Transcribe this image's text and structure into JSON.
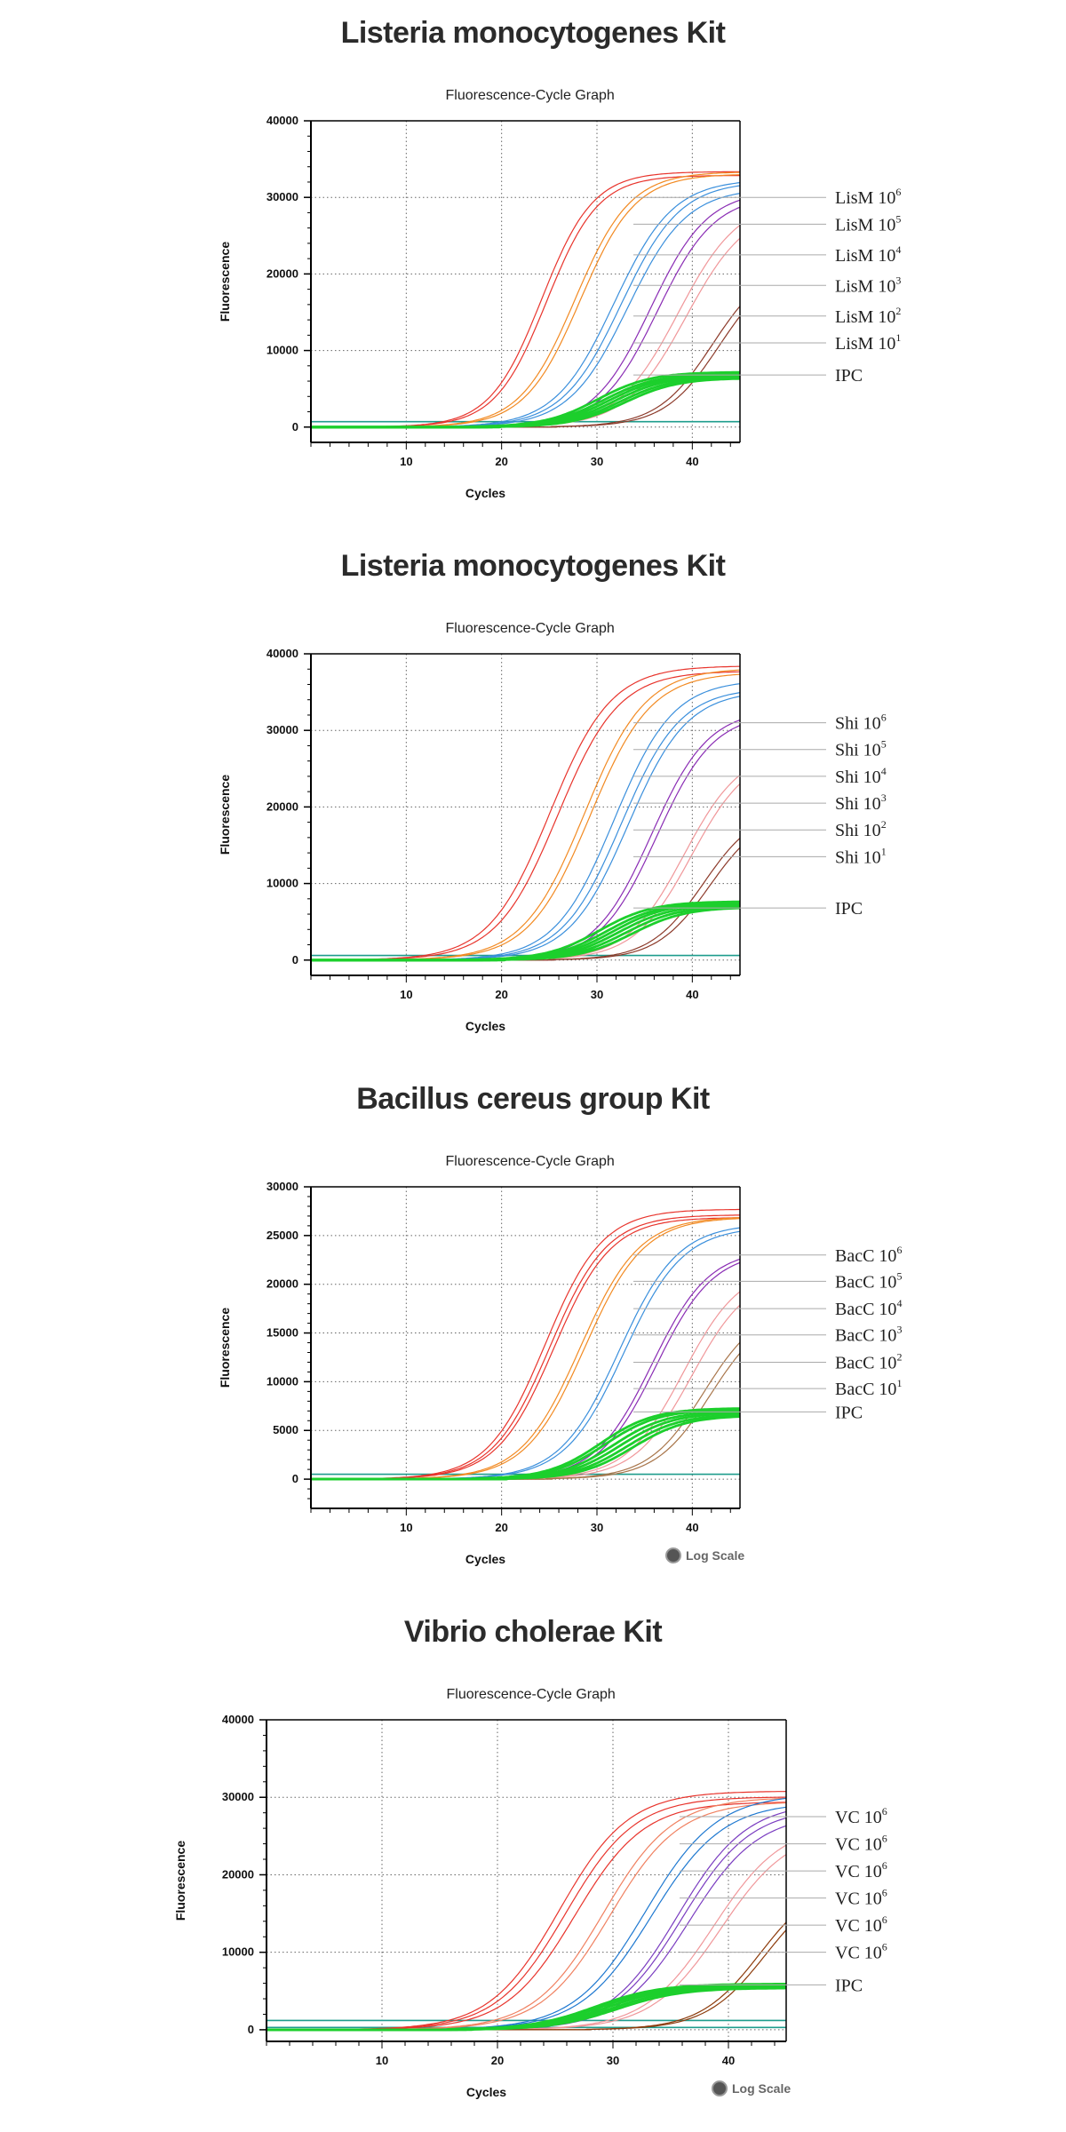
{
  "chart_data": [
    {
      "type": "line",
      "kit_title": "Listeria monocytogenes Kit",
      "title": "Fluorescence-Cycle Graph",
      "xlabel": "Cycles",
      "ylabel": "Fluorescence",
      "xlim": [
        0,
        45
      ],
      "ylim": [
        -2000,
        40000
      ],
      "xticks": [
        10,
        20,
        30,
        40
      ],
      "yticks": [
        0,
        10000,
        20000,
        30000,
        40000
      ],
      "yticklabels": [
        "0",
        "10000",
        "20000",
        "30000",
        "40000"
      ],
      "grid": true,
      "baselines": [
        {
          "y": 700,
          "color": "#1e9c8c"
        }
      ],
      "series": [
        {
          "name": "LisM 10",
          "sup": "6",
          "color": "#e8342c",
          "plateau": 34000,
          "midpoint": 24.5,
          "slope": 2.7,
          "replicates": 2,
          "spread": 0.5,
          "legend_y": 30000
        },
        {
          "name": "LisM 10",
          "sup": "5",
          "color": "#f28a22",
          "plateau": 34000,
          "midpoint": 28.0,
          "slope": 2.9,
          "replicates": 2,
          "spread": 0.5,
          "legend_y": 26500
        },
        {
          "name": "LisM 10",
          "sup": "4",
          "color": "#3a8fdc",
          "plateau": 33000,
          "midpoint": 32.5,
          "slope": 3.1,
          "replicates": 3,
          "spread": 0.7,
          "legend_y": 22500
        },
        {
          "name": "LisM 10",
          "sup": "3",
          "color": "#8a2cb4",
          "plateau": 31500,
          "midpoint": 36.0,
          "slope": 3.0,
          "replicates": 2,
          "spread": 0.6,
          "legend_y": 18500
        },
        {
          "name": "LisM 10",
          "sup": "2",
          "color": "#f0979a",
          "plateau": 30000,
          "midpoint": 39.0,
          "slope": 3.2,
          "replicates": 2,
          "spread": 0.8,
          "legend_y": 14500
        },
        {
          "name": "LisM 10",
          "sup": "1",
          "color": "#8c3a2a",
          "plateau": 22000,
          "midpoint": 42.5,
          "slope": 2.9,
          "replicates": 2,
          "spread": 0.8,
          "legend_y": 11000
        },
        {
          "name": "IPC",
          "sup": "",
          "color": "#1ccf2c",
          "plateau": 7200,
          "midpoint": 31.5,
          "slope": 2.8,
          "replicates": 6,
          "spread": 0.6,
          "legend_y": 6800,
          "thick": true
        }
      ]
    },
    {
      "type": "line",
      "kit_title": "Listeria monocytogenes Kit",
      "title": "Fluorescence-Cycle Graph",
      "xlabel": "Cycles",
      "ylabel": "Fluorescence",
      "xlim": [
        0,
        45
      ],
      "ylim": [
        -2000,
        40000
      ],
      "xticks": [
        10,
        20,
        30,
        40
      ],
      "yticks": [
        0,
        10000,
        20000,
        30000,
        40000
      ],
      "yticklabels": [
        "0",
        "10000",
        "20000",
        "30000",
        "40000"
      ],
      "grid": true,
      "baselines": [
        {
          "y": 600,
          "color": "#1e9c8c"
        }
      ],
      "series": [
        {
          "name": "Shi 10",
          "sup": "6",
          "color": "#e8342c",
          "plateau": 39000,
          "midpoint": 25.5,
          "slope": 3.2,
          "replicates": 2,
          "spread": 0.7,
          "legend_y": 31000
        },
        {
          "name": "Shi 10",
          "sup": "5",
          "color": "#f28a22",
          "plateau": 38500,
          "midpoint": 29.0,
          "slope": 3.2,
          "replicates": 2,
          "spread": 0.6,
          "legend_y": 27500
        },
        {
          "name": "Shi 10",
          "sup": "4",
          "color": "#3a8fdc",
          "plateau": 37000,
          "midpoint": 32.5,
          "slope": 3.1,
          "replicates": 3,
          "spread": 0.7,
          "legend_y": 24000
        },
        {
          "name": "Shi 10",
          "sup": "3",
          "color": "#8a2cb4",
          "plateau": 33000,
          "midpoint": 36.0,
          "slope": 3.0,
          "replicates": 2,
          "spread": 0.5,
          "legend_y": 20500
        },
        {
          "name": "Shi 10",
          "sup": "2",
          "color": "#f0979a",
          "plateau": 28000,
          "midpoint": 39.5,
          "slope": 3.0,
          "replicates": 2,
          "spread": 0.8,
          "legend_y": 17000
        },
        {
          "name": "Shi 10",
          "sup": "1",
          "color": "#8c3a2a",
          "plateau": 20000,
          "midpoint": 41.5,
          "slope": 2.8,
          "replicates": 2,
          "spread": 0.6,
          "legend_y": 13500
        },
        {
          "name": "IPC",
          "sup": "",
          "color": "#1ccf2c",
          "plateau": 7800,
          "midpoint": 32.0,
          "slope": 2.8,
          "replicates": 6,
          "spread": 0.7,
          "legend_y": 6800,
          "thick": true
        }
      ]
    },
    {
      "type": "line",
      "kit_title": "Bacillus cereus group Kit",
      "title": "Fluorescence-Cycle Graph",
      "xlabel": "Cycles",
      "ylabel": "Fluorescence",
      "xlim": [
        0,
        45
      ],
      "ylim": [
        -3000,
        30000
      ],
      "xticks": [
        10,
        20,
        30,
        40
      ],
      "yticks": [
        0,
        5000,
        10000,
        15000,
        20000,
        25000,
        30000
      ],
      "yticklabels": [
        "0",
        "5000",
        "10000",
        "15000",
        "20000",
        "25000",
        "30000"
      ],
      "grid": true,
      "baselines": [
        {
          "y": 500,
          "color": "#1e9c8c"
        }
      ],
      "series": [
        {
          "name": "BacC 10",
          "sup": "6",
          "color": "#e8342c",
          "plateau": 28000,
          "midpoint": 25.0,
          "slope": 3.0,
          "replicates": 3,
          "spread": 0.5,
          "legend_y": 23000
        },
        {
          "name": "BacC 10",
          "sup": "5",
          "color": "#f28a22",
          "plateau": 27500,
          "midpoint": 28.5,
          "slope": 3.1,
          "replicates": 2,
          "spread": 0.4,
          "legend_y": 20300
        },
        {
          "name": "BacC 10",
          "sup": "4",
          "color": "#3a8fdc",
          "plateau": 26500,
          "midpoint": 32.5,
          "slope": 3.1,
          "replicates": 2,
          "spread": 0.5,
          "legend_y": 17500
        },
        {
          "name": "BacC 10",
          "sup": "3",
          "color": "#8a2cb4",
          "plateau": 24000,
          "midpoint": 36.0,
          "slope": 3.0,
          "replicates": 2,
          "spread": 0.5,
          "legend_y": 14800
        },
        {
          "name": "BacC 10",
          "sup": "2",
          "color": "#f0979a",
          "plateau": 22000,
          "midpoint": 39.5,
          "slope": 3.0,
          "replicates": 2,
          "spread": 0.8,
          "legend_y": 12000
        },
        {
          "name": "BacC 10",
          "sup": "1",
          "color": "#a8754a",
          "plateau": 18000,
          "midpoint": 41.5,
          "slope": 2.9,
          "replicates": 2,
          "spread": 0.7,
          "legend_y": 9300
        },
        {
          "name": "IPC",
          "sup": "",
          "color": "#1ccf2c",
          "plateau": 7400,
          "midpoint": 32.0,
          "slope": 2.8,
          "replicates": 6,
          "spread": 0.7,
          "legend_y": 6900,
          "thick": true
        }
      ],
      "log_scale_label": "Log Scale"
    },
    {
      "type": "line",
      "kit_title": "Vibrio cholerae Kit",
      "title": "Fluorescence-Cycle Graph",
      "xlabel": "Cycles",
      "ylabel": "Fluorescence",
      "xlim": [
        0,
        45
      ],
      "ylim": [
        -1500,
        40000
      ],
      "xticks": [
        10,
        20,
        30,
        40
      ],
      "yticks": [
        0,
        10000,
        20000,
        30000,
        40000
      ],
      "yticklabels": [
        "0",
        "10000",
        "20000",
        "30000",
        "40000"
      ],
      "grid": true,
      "baselines": [
        {
          "y": 1200,
          "color": "#1e9c8c"
        },
        {
          "y": 300,
          "color": "#1e9c8c"
        }
      ],
      "series": [
        {
          "name": "VC 10",
          "sup": "6",
          "color": "#e8342c",
          "plateau": 31000,
          "midpoint": 26.0,
          "slope": 3.0,
          "replicates": 3,
          "spread": 0.7,
          "legend_y": 27500
        },
        {
          "name": "VC 10",
          "sup": "6",
          "color": "#f08060",
          "plateau": 30500,
          "midpoint": 29.5,
          "slope": 3.0,
          "replicates": 2,
          "spread": 0.5,
          "legend_y": 24000
        },
        {
          "name": "VC 10",
          "sup": "6",
          "color": "#1e78d0",
          "plateau": 30500,
          "midpoint": 33.0,
          "slope": 3.1,
          "replicates": 2,
          "spread": 0.5,
          "legend_y": 20500
        },
        {
          "name": "VC 10",
          "sup": "6",
          "color": "#7a3cc0",
          "plateau": 29500,
          "midpoint": 36.0,
          "slope": 3.0,
          "replicates": 3,
          "spread": 0.5,
          "legend_y": 17000
        },
        {
          "name": "VC 10",
          "sup": "6",
          "color": "#f0979a",
          "plateau": 27000,
          "midpoint": 39.0,
          "slope": 3.0,
          "replicates": 2,
          "spread": 0.7,
          "legend_y": 13500
        },
        {
          "name": "VC 10",
          "sup": "6",
          "color": "#8c3a0a",
          "plateau": 20000,
          "midpoint": 43.0,
          "slope": 2.6,
          "replicates": 2,
          "spread": 0.4,
          "legend_y": 10000
        },
        {
          "name": "IPC",
          "sup": "",
          "color": "#1ccf2c",
          "plateau": 6000,
          "midpoint": 29.5,
          "slope": 2.8,
          "replicates": 5,
          "spread": 0.5,
          "legend_y": 5800,
          "thick": true
        }
      ],
      "log_scale_label": "Log Scale"
    }
  ]
}
